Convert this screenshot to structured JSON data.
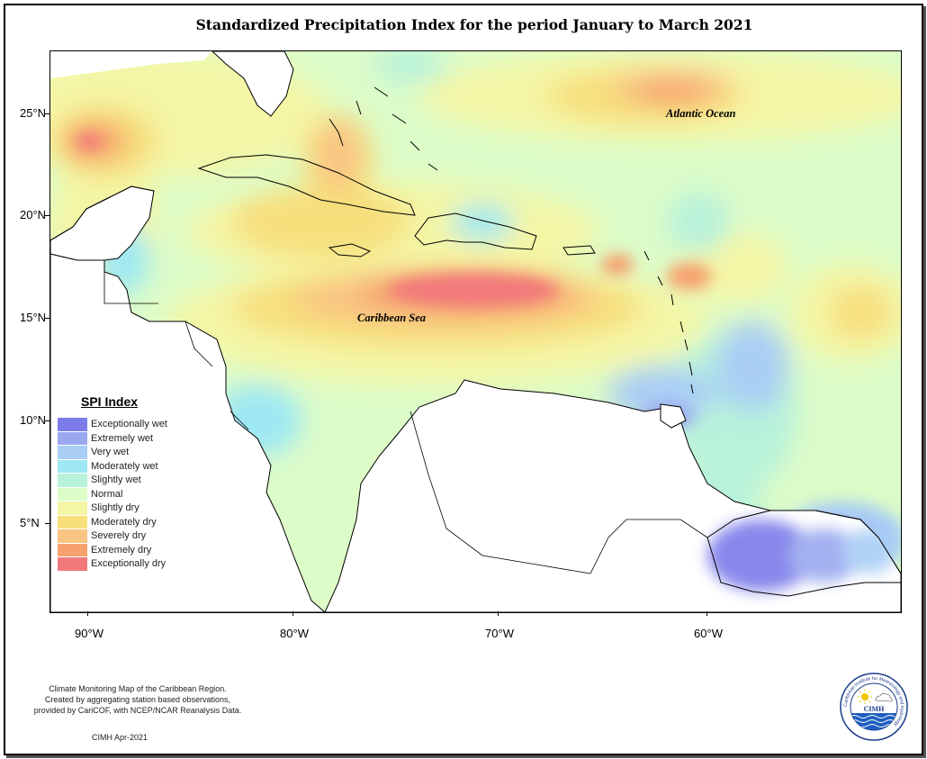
{
  "title": "Standardized Precipitation Index for the period January to March 2021",
  "axes": {
    "latitude_labels": [
      "25°N",
      "20°N",
      "15°N",
      "10°N",
      "5°N"
    ],
    "longitude_labels": [
      "90°W",
      "80°W",
      "70°W",
      "60°W"
    ]
  },
  "map_labels": {
    "atlantic": "Atlantic Ocean",
    "caribbean": "Caribbean Sea"
  },
  "legend": {
    "title": "SPI Index",
    "items": [
      {
        "label": "Exceptionally wet",
        "color": "#7b7bea"
      },
      {
        "label": "Extremely wet",
        "color": "#9aa9ef"
      },
      {
        "label": "Very wet",
        "color": "#a9cdf5"
      },
      {
        "label": "Moderately wet",
        "color": "#9ee8f3"
      },
      {
        "label": "Slightly wet",
        "color": "#b8f2da"
      },
      {
        "label": "Normal",
        "color": "#dcfcc8"
      },
      {
        "label": "Slightly dry",
        "color": "#f4f6a6"
      },
      {
        "label": "Moderately dry",
        "color": "#f7df7c"
      },
      {
        "label": "Severely dry",
        "color": "#f9c483"
      },
      {
        "label": "Extremely dry",
        "color": "#f6a16e"
      },
      {
        "label": "Exceptionally dry",
        "color": "#f2797b"
      }
    ]
  },
  "footnote": {
    "line1": "Climate Monitoring Map of the Caribbean Region.",
    "line2": "Created by aggregating station based observations,",
    "line3": "provided by CariCOF, with NCEP/NCAR Reanalysis Data."
  },
  "credit": "CIMH Apr-2021",
  "logo": {
    "text": "CIMH",
    "ring_text": "Caribbean Institute for Meteorology and Hydrology"
  }
}
